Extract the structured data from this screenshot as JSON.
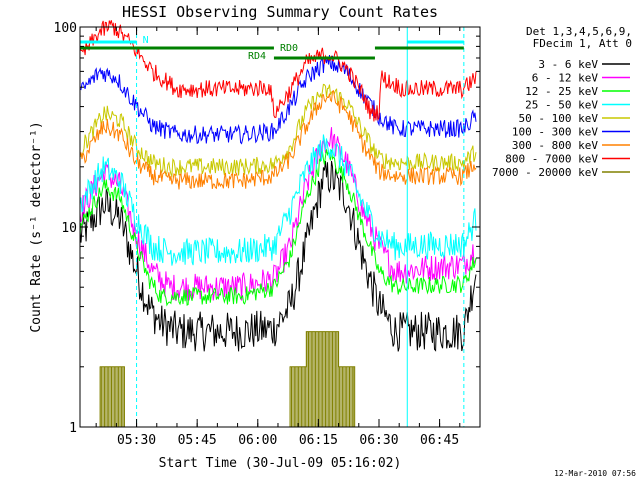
{
  "chart_data": {
    "type": "line",
    "title": "HESSI Observing Summary Count Rates",
    "xlabel": "Start Time (30-Jul-09 05:16:02)",
    "ylabel": "Count Rate (s⁻¹ detector⁻¹)",
    "x_unit": "minutes since 05:16:02",
    "xlim": [
      0,
      99
    ],
    "ylim": [
      1,
      100
    ],
    "yscale": "log",
    "x_ticks": [
      {
        "value": 14,
        "label": "05:30"
      },
      {
        "value": 29,
        "label": "05:45"
      },
      {
        "value": 44,
        "label": "06:00"
      },
      {
        "value": 59,
        "label": "06:15"
      },
      {
        "value": 74,
        "label": "06:30"
      },
      {
        "value": 89,
        "label": "06:45"
      }
    ],
    "y_ticks": [
      {
        "value": 1,
        "label": "1"
      },
      {
        "value": 10,
        "label": "10"
      },
      {
        "value": 100,
        "label": "100"
      }
    ],
    "legend": {
      "position": "right",
      "header": [
        "Det 1,3,4,5,6,9,",
        "FDecim 1, Att 0"
      ]
    },
    "series": [
      {
        "name": "3 - 6 keV",
        "color": "#000000",
        "points": [
          [
            0,
            9
          ],
          [
            6,
            13
          ],
          [
            10,
            11
          ],
          [
            14,
            6
          ],
          [
            17,
            4
          ],
          [
            20,
            3.3
          ],
          [
            24,
            3
          ],
          [
            40,
            3
          ],
          [
            48,
            3.1
          ],
          [
            52,
            4
          ],
          [
            56,
            8
          ],
          [
            60,
            17
          ],
          [
            62,
            18
          ],
          [
            66,
            14
          ],
          [
            70,
            7
          ],
          [
            74,
            4
          ],
          [
            78,
            3
          ],
          [
            95,
            3
          ],
          [
            98,
            6
          ]
        ]
      },
      {
        "name": "6 - 12 keV",
        "color": "#ff00ff",
        "points": [
          [
            0,
            12
          ],
          [
            6,
            19
          ],
          [
            10,
            16
          ],
          [
            14,
            9
          ],
          [
            18,
            6
          ],
          [
            22,
            5
          ],
          [
            40,
            5
          ],
          [
            48,
            5.5
          ],
          [
            52,
            8
          ],
          [
            56,
            16
          ],
          [
            60,
            26
          ],
          [
            62,
            28
          ],
          [
            66,
            21
          ],
          [
            70,
            12
          ],
          [
            74,
            8
          ],
          [
            78,
            6
          ],
          [
            95,
            6.5
          ],
          [
            98,
            8
          ]
        ]
      },
      {
        "name": "12 - 25 keV",
        "color": "#00ff00",
        "points": [
          [
            0,
            10
          ],
          [
            6,
            16
          ],
          [
            10,
            14
          ],
          [
            14,
            8
          ],
          [
            17,
            5.5
          ],
          [
            20,
            4.5
          ],
          [
            40,
            4.5
          ],
          [
            48,
            5
          ],
          [
            52,
            7
          ],
          [
            56,
            14
          ],
          [
            60,
            22
          ],
          [
            62,
            23
          ],
          [
            66,
            17
          ],
          [
            70,
            10
          ],
          [
            74,
            6
          ],
          [
            78,
            5
          ],
          [
            95,
            5.2
          ],
          [
            98,
            7
          ]
        ]
      },
      {
        "name": "25 - 50 keV",
        "color": "#00ffff",
        "points": [
          [
            0,
            13
          ],
          [
            6,
            20
          ],
          [
            10,
            17
          ],
          [
            14,
            11
          ],
          [
            18,
            8
          ],
          [
            22,
            7.5
          ],
          [
            40,
            7.5
          ],
          [
            48,
            8
          ],
          [
            52,
            12
          ],
          [
            56,
            19
          ],
          [
            60,
            25
          ],
          [
            62,
            26
          ],
          [
            66,
            20
          ],
          [
            70,
            13
          ],
          [
            74,
            9
          ],
          [
            78,
            8
          ],
          [
            95,
            8.2
          ],
          [
            98,
            11
          ]
        ]
      },
      {
        "name": "50 - 100 keV",
        "color": "#c8c800",
        "points": [
          [
            0,
            24
          ],
          [
            6,
            37
          ],
          [
            10,
            34
          ],
          [
            14,
            25
          ],
          [
            18,
            21
          ],
          [
            22,
            20
          ],
          [
            40,
            20
          ],
          [
            48,
            20.5
          ],
          [
            52,
            25
          ],
          [
            56,
            38
          ],
          [
            60,
            47
          ],
          [
            62,
            48
          ],
          [
            66,
            42
          ],
          [
            70,
            30
          ],
          [
            74,
            22
          ],
          [
            78,
            21
          ],
          [
            95,
            21
          ],
          [
            98,
            24
          ]
        ]
      },
      {
        "name": "100 - 300 keV",
        "color": "#0000ff",
        "points": [
          [
            0,
            47
          ],
          [
            5,
            60
          ],
          [
            9,
            56
          ],
          [
            13,
            43
          ],
          [
            18,
            32
          ],
          [
            24,
            29
          ],
          [
            40,
            29
          ],
          [
            48,
            30
          ],
          [
            52,
            40
          ],
          [
            56,
            55
          ],
          [
            60,
            65
          ],
          [
            62,
            66
          ],
          [
            66,
            60
          ],
          [
            70,
            46
          ],
          [
            74,
            36
          ],
          [
            78,
            31
          ],
          [
            95,
            31
          ],
          [
            98,
            36
          ]
        ]
      },
      {
        "name": "300 - 800 keV",
        "color": "#ff8000",
        "points": [
          [
            0,
            21
          ],
          [
            6,
            32
          ],
          [
            10,
            29
          ],
          [
            14,
            21
          ],
          [
            18,
            18
          ],
          [
            22,
            17
          ],
          [
            40,
            17
          ],
          [
            48,
            18
          ],
          [
            52,
            22
          ],
          [
            56,
            32
          ],
          [
            60,
            44
          ],
          [
            62,
            45
          ],
          [
            66,
            38
          ],
          [
            70,
            26
          ],
          [
            74,
            19
          ],
          [
            78,
            18
          ],
          [
            95,
            18
          ],
          [
            98,
            21
          ]
        ]
      },
      {
        "name": "800 - 7000 keV",
        "color": "#ff0000",
        "points": [
          [
            0,
            70
          ],
          [
            5,
            95
          ],
          [
            8,
            102
          ],
          [
            12,
            85
          ],
          [
            18,
            60
          ],
          [
            24,
            49
          ],
          [
            40,
            49
          ],
          [
            47,
            50
          ],
          [
            48,
            37
          ],
          [
            52,
            48
          ],
          [
            56,
            66
          ],
          [
            60,
            72
          ],
          [
            62,
            73
          ],
          [
            66,
            62
          ],
          [
            70,
            46
          ],
          [
            72,
            37
          ],
          [
            74,
            38
          ],
          [
            74.5,
            56
          ],
          [
            80,
            49
          ],
          [
            95,
            49
          ],
          [
            98,
            56
          ]
        ]
      },
      {
        "name": "7000 - 20000 keV",
        "color": "#808000",
        "points": [
          [
            5,
            1
          ],
          [
            5,
            2
          ],
          [
            11,
            2
          ],
          [
            11,
            1
          ],
          [
            52,
            1
          ],
          [
            52,
            2
          ],
          [
            56,
            2
          ],
          [
            56,
            3
          ],
          [
            64,
            3
          ],
          [
            64,
            2
          ],
          [
            68,
            2
          ],
          [
            68,
            1
          ]
        ]
      }
    ],
    "bars": [
      {
        "label": "N",
        "color": "#00ffff",
        "from": 0,
        "to": 14
      },
      {
        "label": "",
        "color": "#00ffff",
        "from": 81,
        "to": 95
      },
      {
        "label": "",
        "color": "#008000",
        "from": 0,
        "to": 48
      },
      {
        "label": "RD4",
        "color": "#008000",
        "from": 48,
        "to": 48
      },
      {
        "label": "RD0",
        "color": "#008000",
        "from": 48,
        "to": 73
      },
      {
        "label": "",
        "color": "#008000",
        "from": 73,
        "to": 95
      }
    ],
    "vlines": [
      {
        "x": 0,
        "color": "#00ffff",
        "style": "solid"
      },
      {
        "x": 14,
        "color": "#00ffff",
        "style": "dashed"
      },
      {
        "x": 81,
        "color": "#00ffff",
        "style": "solid"
      },
      {
        "x": 95,
        "color": "#00ffff",
        "style": "dashed"
      }
    ]
  },
  "footer": {
    "timestamp": "12-Mar-2010 07:56"
  }
}
